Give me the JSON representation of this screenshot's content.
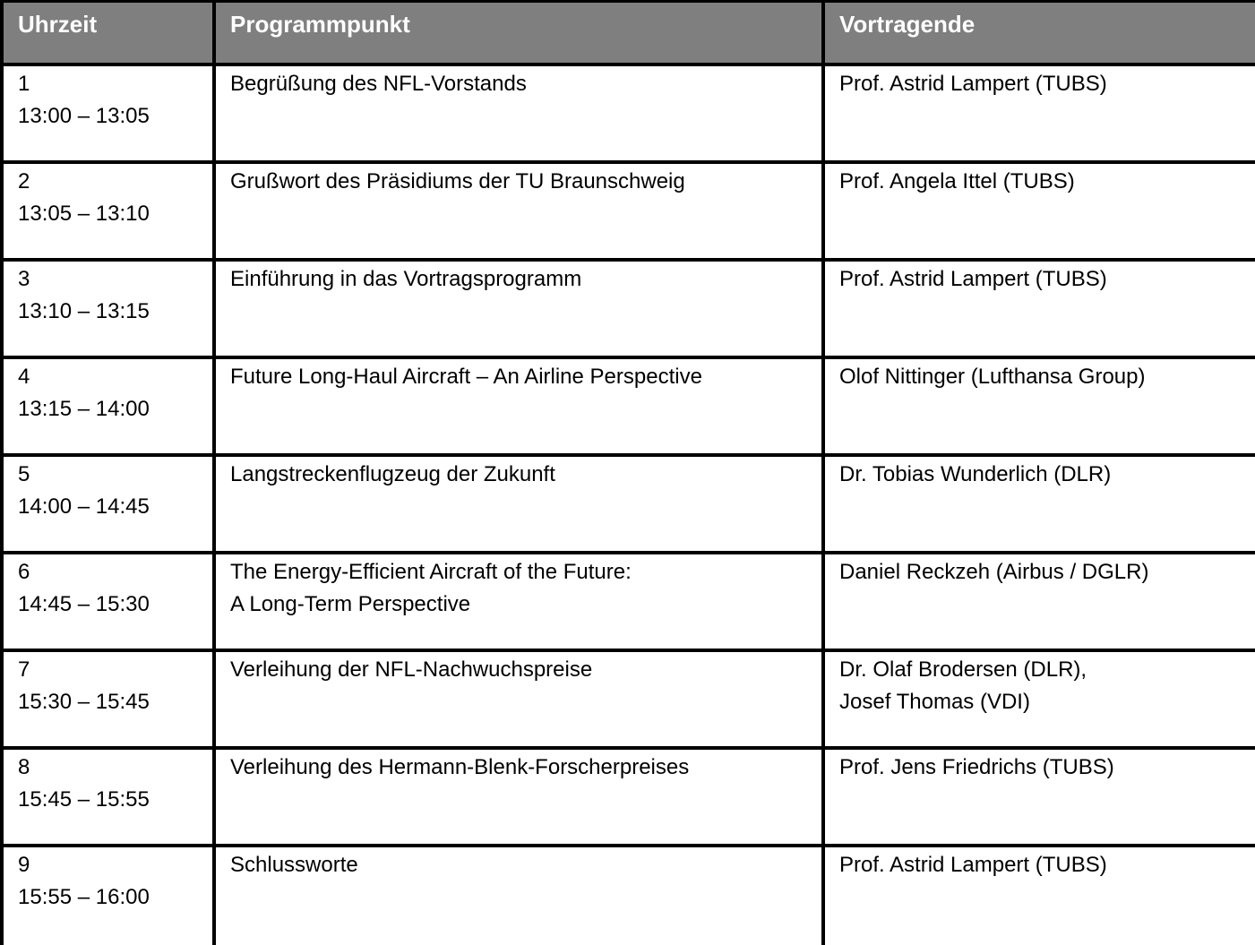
{
  "colors": {
    "header_bg": "#7f7f7f",
    "header_text": "#ffffff",
    "border": "#000000",
    "cell_bg": "#ffffff",
    "body_text": "#000000"
  },
  "table": {
    "columns": [
      {
        "key": "time",
        "label": "Uhrzeit"
      },
      {
        "key": "program",
        "label": "Programmpunkt"
      },
      {
        "key": "speakers",
        "label": "Vortragende"
      }
    ],
    "rows": [
      {
        "num": "1",
        "time": "13:00 – 13:05",
        "program": [
          "Begrüßung des NFL-Vorstands"
        ],
        "speakers": [
          "Prof. Astrid Lampert (TUBS)"
        ]
      },
      {
        "num": "2",
        "time": "13:05 – 13:10",
        "program": [
          "Grußwort des Präsidiums der TU Braunschweig"
        ],
        "speakers": [
          "Prof. Angela Ittel (TUBS)"
        ]
      },
      {
        "num": "3",
        "time": "13:10 – 13:15",
        "program": [
          "Einführung in das Vortragsprogramm"
        ],
        "speakers": [
          "Prof. Astrid Lampert (TUBS)"
        ]
      },
      {
        "num": "4",
        "time": "13:15 – 14:00",
        "program": [
          "Future Long-Haul Aircraft – An Airline Perspective"
        ],
        "speakers": [
          "Olof Nittinger (Lufthansa Group)"
        ]
      },
      {
        "num": "5",
        "time": "14:00 – 14:45",
        "program": [
          "Langstreckenflugzeug der Zukunft"
        ],
        "speakers": [
          "Dr. Tobias Wunderlich (DLR)"
        ]
      },
      {
        "num": "6",
        "time": "14:45 – 15:30",
        "program": [
          "The Energy-Efficient Aircraft of the Future:",
          "A Long-Term Perspective"
        ],
        "speakers": [
          "Daniel Reckzeh (Airbus / DGLR)"
        ]
      },
      {
        "num": "7",
        "time": "15:30 – 15:45",
        "program": [
          "Verleihung der NFL-Nachwuchspreise"
        ],
        "speakers": [
          "Dr. Olaf Brodersen (DLR),",
          "Josef Thomas (VDI)"
        ]
      },
      {
        "num": "8",
        "time": "15:45 – 15:55",
        "program": [
          "Verleihung des Hermann-Blenk-Forscherpreises"
        ],
        "speakers": [
          "Prof. Jens Friedrichs (TUBS)"
        ]
      },
      {
        "num": "9",
        "time": "15:55 – 16:00",
        "program": [
          "Schlussworte"
        ],
        "speakers": [
          "Prof. Astrid Lampert (TUBS)"
        ]
      }
    ]
  }
}
